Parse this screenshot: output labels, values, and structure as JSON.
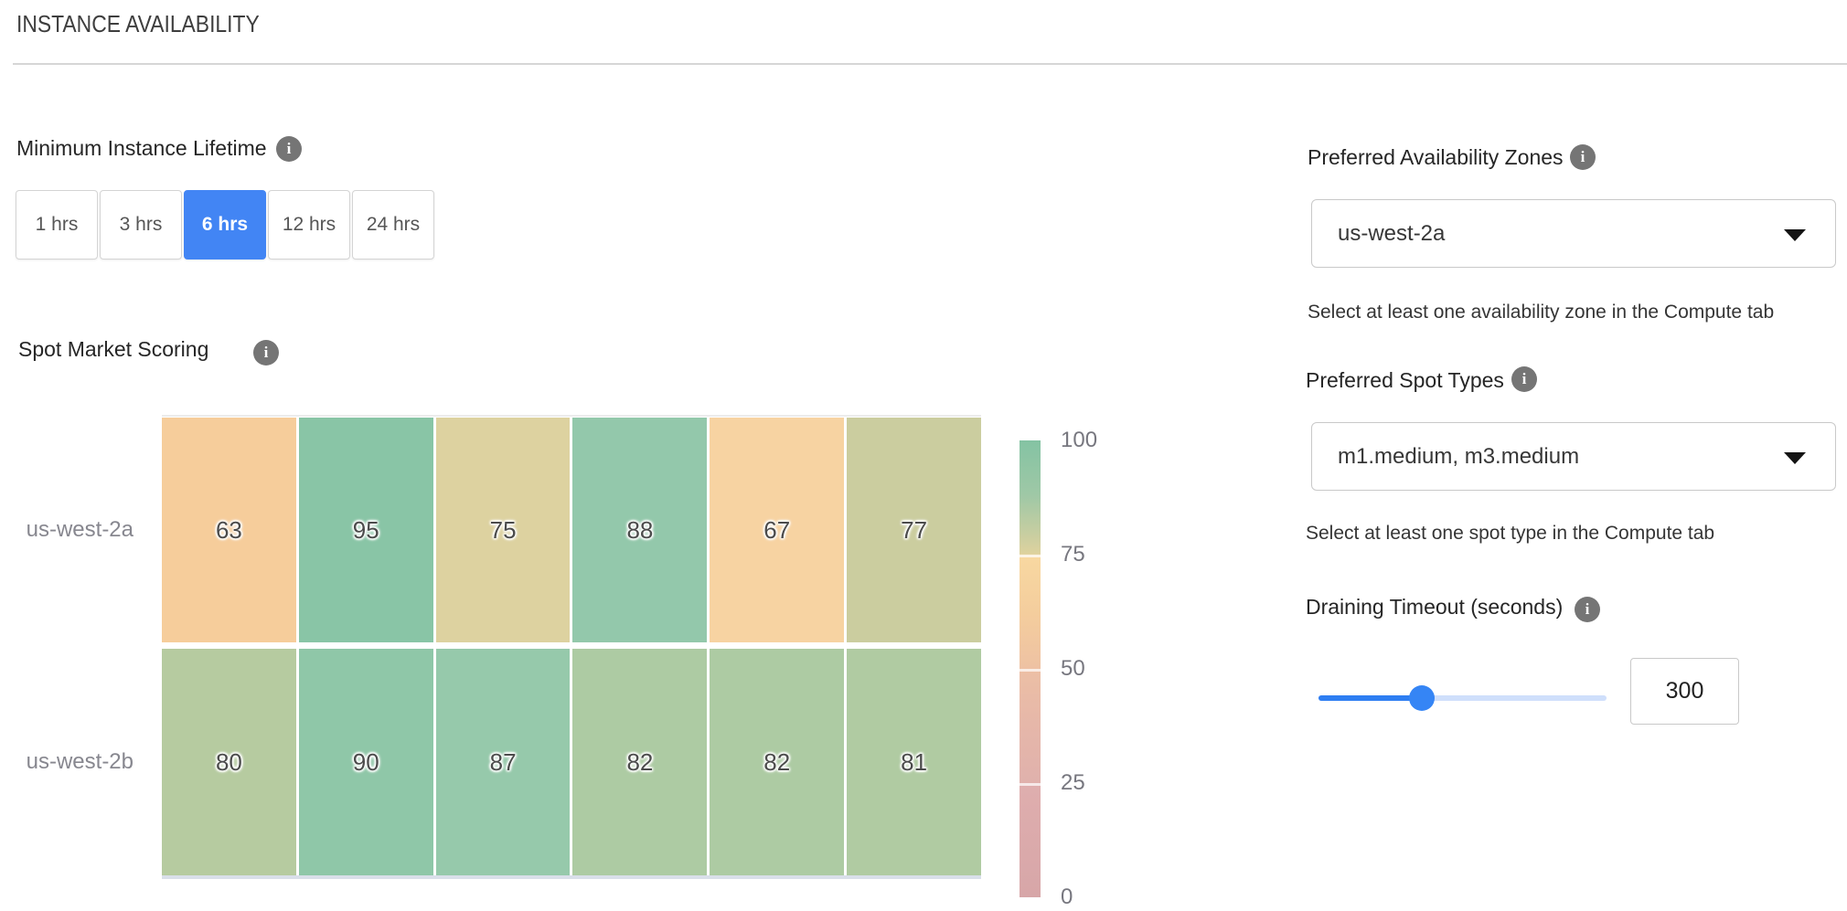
{
  "header": {
    "title": "INSTANCE AVAILABILITY"
  },
  "lifetime": {
    "label": "Minimum Instance Lifetime",
    "selected": "6 hrs",
    "options": [
      {
        "label": "1 hrs",
        "selected": false
      },
      {
        "label": "3 hrs",
        "selected": false
      },
      {
        "label": "6 hrs",
        "selected": true
      },
      {
        "label": "12 hrs",
        "selected": false
      },
      {
        "label": "24 hrs",
        "selected": false
      }
    ]
  },
  "scoring": {
    "label": "Spot Market Scoring"
  },
  "chart_data": {
    "type": "heatmap",
    "title": "Spot Market Scoring",
    "rows": [
      "us-west-2a",
      "us-west-2b"
    ],
    "columns": [
      "",
      "",
      "",
      "",
      "",
      ""
    ],
    "values": [
      [
        63,
        95,
        75,
        88,
        67,
        77
      ],
      [
        80,
        90,
        87,
        82,
        82,
        81
      ]
    ],
    "cell_colors": [
      [
        "#f6cd9b",
        "#89c5a6",
        "#ddd2a0",
        "#93c8ab",
        "#f7d3a2",
        "#cbcd9f"
      ],
      [
        "#b6cba0",
        "#8fc7a8",
        "#96c9ab",
        "#adcba3",
        "#adcba3",
        "#b0cba2"
      ]
    ],
    "value_range": [
      0,
      100
    ],
    "colorbar": {
      "ticks": [
        100,
        75,
        50,
        25,
        0
      ],
      "gradient_stops": [
        "#84c3a3 0%",
        "#9fc8a6 12%",
        "#cfcfa0 22%",
        "#ded29e 24.8%",
        "#f8d8a1 25.4%",
        "#f4cd9d 38%",
        "#eec2a3 49.8%",
        "#ecbfa5 50.4%",
        "#e6b7a9 62%",
        "#e0b1ac 74.8%",
        "#dfaeae 75.4%",
        "#d7a6a8 100%"
      ]
    }
  },
  "zones": {
    "label": "Preferred Availability Zones",
    "value": "us-west-2a",
    "helper": "Select at least one availability zone in the Compute tab"
  },
  "spot_types": {
    "label": "Preferred Spot Types",
    "value": "m1.medium, m3.medium",
    "helper": "Select at least one spot type in the Compute tab"
  },
  "draining": {
    "label": "Draining Timeout (seconds)",
    "value": "300",
    "percent": 36
  },
  "icons": {
    "info": "i",
    "dropdown_caret": "chevron-down"
  },
  "colors": {
    "accent_blue": "#4285f4",
    "info_icon_gray": "#757575",
    "slider_fill": "#2e7ef2",
    "slider_track": "#cfdffb",
    "slider_thumb": "#3585f5"
  }
}
